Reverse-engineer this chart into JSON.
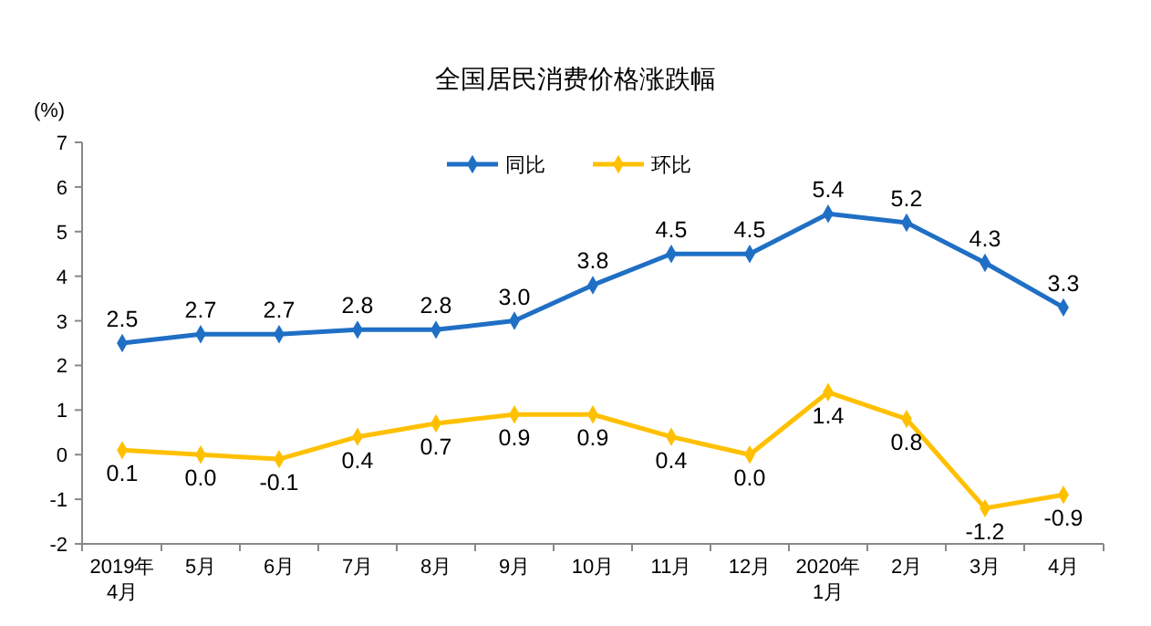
{
  "chart_data": {
    "type": "line",
    "title": "全国居民消费价格涨跌幅",
    "ylabel": "(%)",
    "categories": [
      "2019年\n4月",
      "5月",
      "6月",
      "7月",
      "8月",
      "9月",
      "10月",
      "11月",
      "12月",
      "2020年\n1月",
      "2月",
      "3月",
      "4月"
    ],
    "series": [
      {
        "name": "同比",
        "color": "#1f6fc5",
        "values": [
          2.5,
          2.7,
          2.7,
          2.8,
          2.8,
          3.0,
          3.8,
          4.5,
          4.5,
          5.4,
          5.2,
          4.3,
          3.3
        ],
        "value_labels": [
          "2.5",
          "2.7",
          "2.7",
          "2.8",
          "2.8",
          "3.0",
          "3.8",
          "4.5",
          "4.5",
          "5.4",
          "5.2",
          "4.3",
          "3.3"
        ]
      },
      {
        "name": "环比",
        "color": "#ffc000",
        "values": [
          0.1,
          0.0,
          -0.1,
          0.4,
          0.7,
          0.9,
          0.9,
          0.4,
          0.0,
          1.4,
          0.8,
          -1.2,
          -0.9
        ],
        "value_labels": [
          "0.1",
          "0.0",
          "-0.1",
          "0.4",
          "0.7",
          "0.9",
          "0.9",
          "0.4",
          "0.0",
          "1.4",
          "0.8",
          "-1.2",
          "-0.9"
        ]
      }
    ],
    "ylim": [
      -2,
      7
    ],
    "yticks": [
      -2,
      -1,
      0,
      1,
      2,
      3,
      4,
      5,
      6,
      7
    ],
    "legend": "top",
    "marker": "diamond",
    "line_style": "solid",
    "grid": false
  }
}
